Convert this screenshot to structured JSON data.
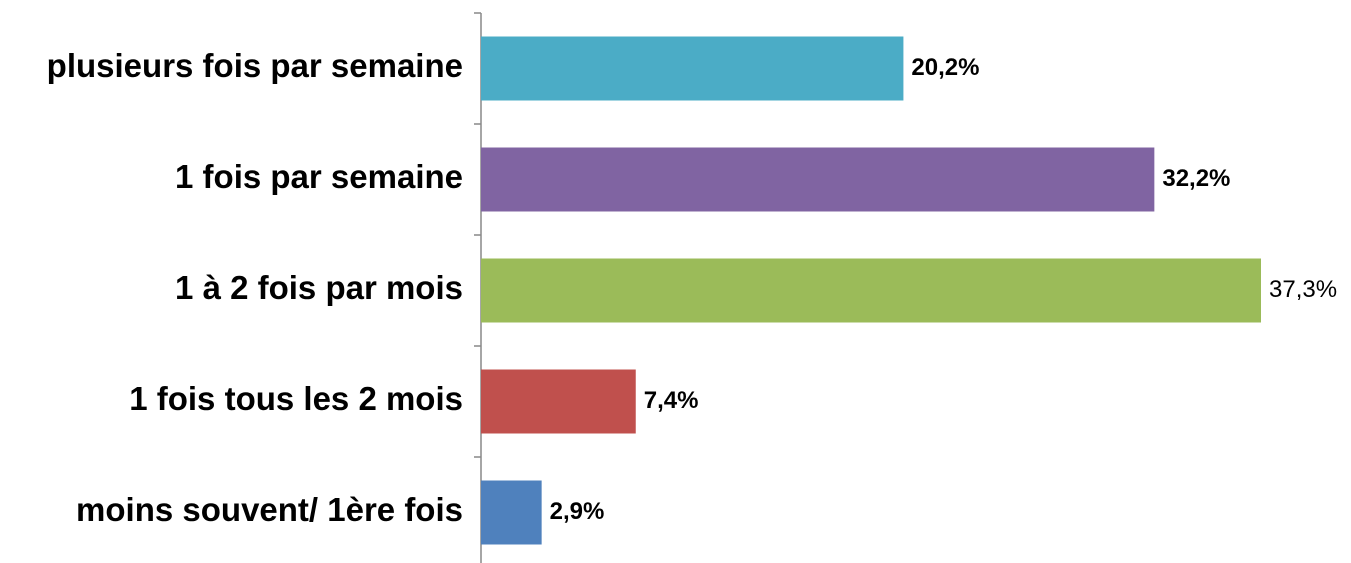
{
  "chart_data": {
    "type": "bar",
    "orientation": "horizontal",
    "categories": [
      "plusieurs fois par semaine",
      "1 fois par semaine",
      "1 à 2 fois par mois",
      "1 fois tous les 2 mois",
      "moins souvent/ 1ère fois"
    ],
    "values": [
      20.2,
      32.2,
      37.3,
      7.4,
      2.9
    ],
    "value_labels": [
      "20,2%",
      "32,2%",
      "37,3%",
      "7,4%",
      "2,9%"
    ],
    "value_label_bold": [
      true,
      true,
      false,
      true,
      true
    ],
    "colors": [
      "#4bacc6",
      "#8064a2",
      "#9bbb59",
      "#c0504d",
      "#4f81bd"
    ]
  }
}
